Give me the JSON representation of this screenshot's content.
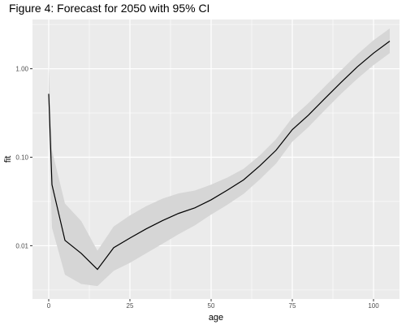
{
  "chart_data": {
    "type": "line",
    "title": "Figure 4: Forecast for 2050 with 95% CI",
    "xlabel": "age",
    "ylabel": "fit",
    "y_scale": "log10",
    "xlim": [
      -5,
      108
    ],
    "ylim": [
      0.0025,
      3.6
    ],
    "x_ticks": [
      0,
      25,
      50,
      75,
      100
    ],
    "x_tick_labels": [
      "0",
      "25",
      "50",
      "75",
      "100"
    ],
    "y_ticks": [
      0.01,
      0.1,
      1.0
    ],
    "y_tick_labels": [
      "0.01",
      "0.10",
      "1.00"
    ],
    "grid": true,
    "background": "#ebebeb",
    "grid_color": "#ffffff",
    "line_color": "#000000",
    "band_color": "#d6d6d6",
    "series": [
      {
        "x": [
          0,
          1,
          5,
          10,
          15,
          20,
          25,
          30,
          35,
          40,
          45,
          50,
          55,
          60,
          65,
          70,
          75,
          80,
          85,
          90,
          95,
          100,
          105
        ],
        "y": [
          0.52,
          0.049,
          0.0115,
          0.0082,
          0.0054,
          0.0095,
          0.0122,
          0.0155,
          0.0192,
          0.0232,
          0.0268,
          0.033,
          0.0425,
          0.0555,
          0.08,
          0.12,
          0.205,
          0.3,
          0.46,
          0.7,
          1.05,
          1.5,
          2.05
        ],
        "lower": [
          0.2,
          0.016,
          0.0047,
          0.0037,
          0.0035,
          0.0052,
          0.0064,
          0.0082,
          0.0105,
          0.0135,
          0.017,
          0.0225,
          0.029,
          0.0385,
          0.056,
          0.085,
          0.15,
          0.22,
          0.34,
          0.52,
          0.77,
          1.1,
          1.5
        ],
        "upper": [
          1.1,
          0.12,
          0.03,
          0.019,
          0.0088,
          0.0165,
          0.022,
          0.028,
          0.034,
          0.039,
          0.042,
          0.049,
          0.059,
          0.074,
          0.105,
          0.16,
          0.28,
          0.41,
          0.63,
          0.96,
          1.45,
          2.1,
          2.85
        ]
      }
    ]
  }
}
